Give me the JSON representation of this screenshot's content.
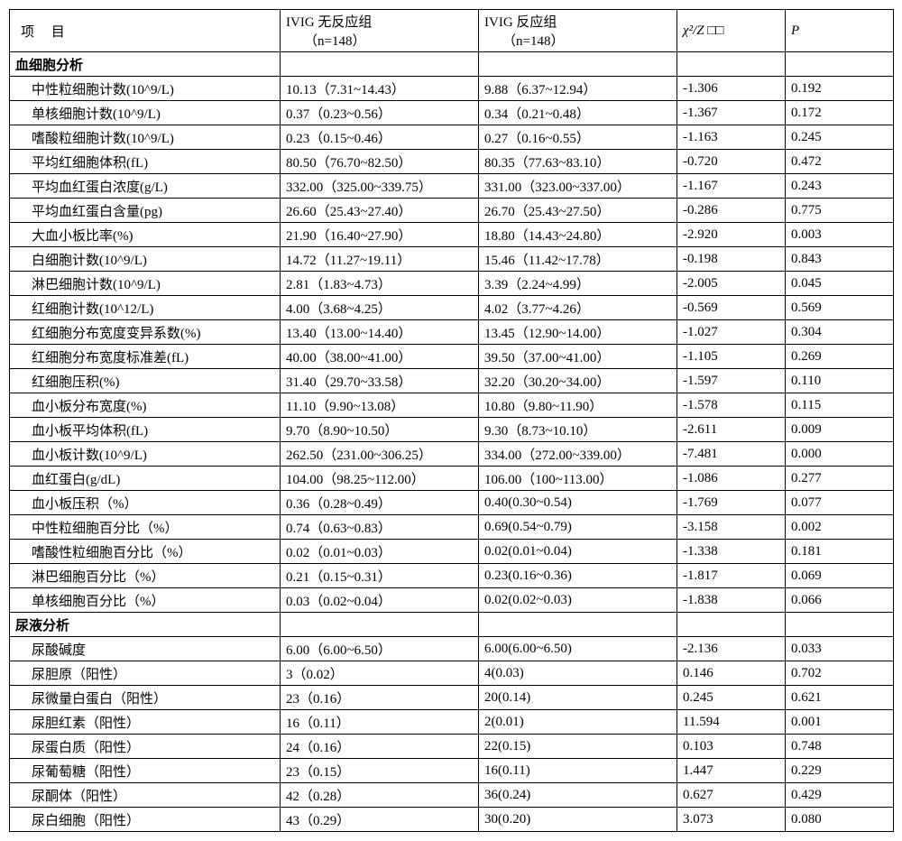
{
  "header": {
    "item": "项  目",
    "group1_line1": "IVIG 无反应组",
    "group1_line2": "（n=148）",
    "group2_line1": "IVIG 反应组",
    "group2_line2": "（n=148）",
    "stat": "χ²/Z",
    "stat_suffix": " □□",
    "p": "P"
  },
  "sections": [
    {
      "title": "血细胞分析",
      "rows": [
        {
          "item": "中性粒细胞计数(10^9/L)",
          "g1": "10.13（7.31~14.43）",
          "g2": "9.88（6.37~12.94）",
          "stat": "-1.306",
          "p": "0.192"
        },
        {
          "item": "单核细胞计数(10^9/L)",
          "g1": "0.37（0.23~0.56）",
          "g2": "0.34（0.21~0.48）",
          "stat": "-1.367",
          "p": "0.172"
        },
        {
          "item": "嗜酸粒细胞计数(10^9/L)",
          "g1": "0.23（0.15~0.46）",
          "g2": "0.27（0.16~0.55）",
          "stat": "-1.163",
          "p": "0.245"
        },
        {
          "item": "平均红细胞体积(fL)",
          "g1": "80.50（76.70~82.50）",
          "g2": "80.35（77.63~83.10）",
          "stat": "-0.720",
          "p": "0.472"
        },
        {
          "item": "平均血红蛋白浓度(g/L)",
          "g1": "332.00（325.00~339.75）",
          "g2": "331.00（323.00~337.00）",
          "stat": "-1.167",
          "p": "0.243"
        },
        {
          "item": "平均血红蛋白含量(pg)",
          "g1": "26.60（25.43~27.40）",
          "g2": "26.70（25.43~27.50）",
          "stat": "-0.286",
          "p": "0.775"
        },
        {
          "item": "大血小板比率(%)",
          "g1": "21.90（16.40~27.90）",
          "g2": "18.80（14.43~24.80）",
          "stat": "-2.920",
          "p": "0.003"
        },
        {
          "item": "白细胞计数(10^9/L)",
          "g1": "14.72（11.27~19.11）",
          "g2": "15.46（11.42~17.78）",
          "stat": "-0.198",
          "p": "0.843"
        },
        {
          "item": "淋巴细胞计数(10^9/L)",
          "g1": "2.81（1.83~4.73）",
          "g2": "3.39（2.24~4.99）",
          "stat": "-2.005",
          "p": "0.045"
        },
        {
          "item": "红细胞计数(10^12/L)",
          "g1": "4.00（3.68~4.25）",
          "g2": "4.02（3.77~4.26）",
          "stat": "-0.569",
          "p": "0.569"
        },
        {
          "item": "红细胞分布宽度变异系数(%)",
          "g1": "13.40（13.00~14.40）",
          "g2": "13.45（12.90~14.00）",
          "stat": "-1.027",
          "p": "0.304"
        },
        {
          "item": "红细胞分布宽度标准差(fL)",
          "g1": "40.00（38.00~41.00）",
          "g2": "39.50（37.00~41.00）",
          "stat": "-1.105",
          "p": "0.269"
        },
        {
          "item": "红细胞压积(%)",
          "g1": "31.40（29.70~33.58）",
          "g2": "32.20（30.20~34.00）",
          "stat": "-1.597",
          "p": "0.110"
        },
        {
          "item": "血小板分布宽度(%)",
          "g1": "11.10（9.90~13.08）",
          "g2": "10.80（9.80~11.90）",
          "stat": "-1.578",
          "p": "0.115"
        },
        {
          "item": "血小板平均体积(fL)",
          "g1": "9.70（8.90~10.50）",
          "g2": "9.30（8.73~10.10）",
          "stat": "-2.611",
          "p": "0.009"
        },
        {
          "item": "血小板计数(10^9/L)",
          "g1": "262.50（231.00~306.25）",
          "g2": "334.00（272.00~339.00）",
          "stat": "-7.481",
          "p": "0.000"
        },
        {
          "item": "血红蛋白(g/dL)",
          "g1": "104.00（98.25~112.00）",
          "g2": "106.00（100~113.00）",
          "stat": "-1.086",
          "p": "0.277"
        },
        {
          "item": "血小板压积（%）",
          "g1": "0.36（0.28~0.49）",
          "g2": "0.40(0.30~0.54)",
          "stat": "-1.769",
          "p": "0.077"
        },
        {
          "item": "中性粒细胞百分比（%）",
          "g1": "0.74（0.63~0.83）",
          "g2": "0.69(0.54~0.79)",
          "stat": "-3.158",
          "p": "0.002"
        },
        {
          "item": "嗜酸性粒细胞百分比（%）",
          "g1": "0.02（0.01~0.03）",
          "g2": "0.02(0.01~0.04)",
          "stat": "-1.338",
          "p": "0.181"
        },
        {
          "item": "淋巴细胞百分比（%）",
          "g1": "0.21（0.15~0.31）",
          "g2": "0.23(0.16~0.36)",
          "stat": "-1.817",
          "p": "0.069"
        },
        {
          "item": "单核细胞百分比（%）",
          "g1": "0.03（0.02~0.04）",
          "g2": "0.02(0.02~0.03)",
          "stat": "-1.838",
          "p": "0.066"
        }
      ]
    },
    {
      "title": "尿液分析",
      "rows": [
        {
          "item": "尿酸碱度",
          "g1": "6.00（6.00~6.50）",
          "g2": "6.00(6.00~6.50)",
          "stat": "-2.136",
          "p": "0.033"
        },
        {
          "item": "尿胆原（阳性）",
          "g1": "3（0.02）",
          "g2": "4(0.03)",
          "stat": "0.146",
          "p": "0.702"
        },
        {
          "item": "尿微量白蛋白（阳性）",
          "g1": "23（0.16）",
          "g2": "20(0.14)",
          "stat": "0.245",
          "p": "0.621"
        },
        {
          "item": "尿胆红素（阳性）",
          "g1": "16（0.11）",
          "g2": "2(0.01)",
          "stat": "11.594",
          "p": "0.001"
        },
        {
          "item": "尿蛋白质（阳性）",
          "g1": "24（0.16）",
          "g2": "22(0.15)",
          "stat": "0.103",
          "p": "0.748"
        },
        {
          "item": "尿葡萄糖（阳性）",
          "g1": "23（0.15）",
          "g2": "16(0.11)",
          "stat": "1.447",
          "p": "0.229"
        },
        {
          "item": "尿酮体（阳性）",
          "g1": "42（0.28）",
          "g2": "36(0.24)",
          "stat": "0.627",
          "p": "0.429"
        },
        {
          "item": "尿白细胞（阳性）",
          "g1": "43（0.29）",
          "g2": "30(0.20)",
          "stat": "3.073",
          "p": "0.080"
        }
      ]
    }
  ]
}
